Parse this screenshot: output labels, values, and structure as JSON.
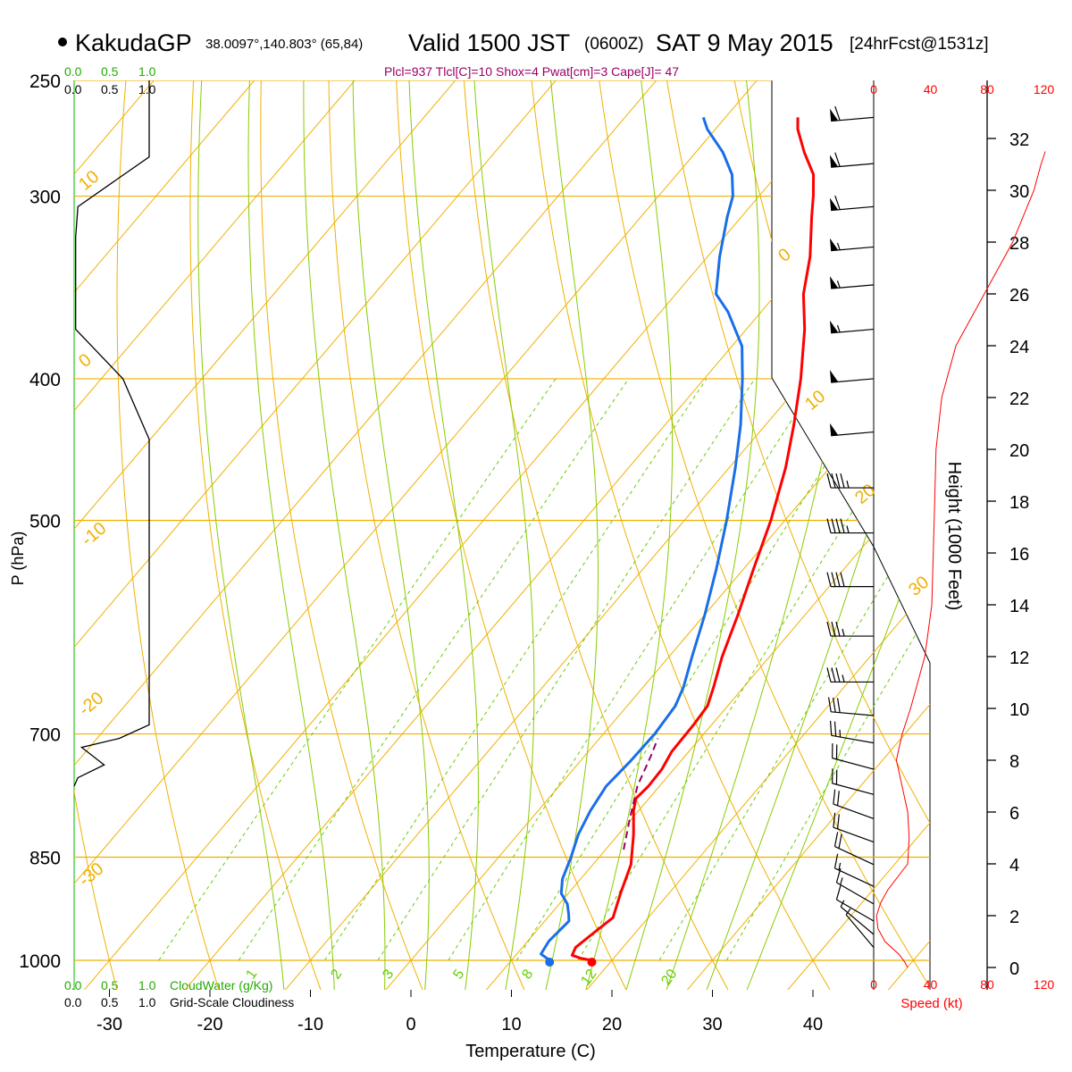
{
  "header": {
    "station_name": "KakudaGP",
    "coords": "38.0097°,140.803° (65,84)",
    "valid_main": "Valid 1500 JST",
    "valid_utc": "(0600Z)",
    "valid_date": "SAT 9 May 2015",
    "forecast": "[24hrFcst@1531z]",
    "params": "Plcl=937 Tlcl[C]=10 Shox=4 Pwat[cm]=3 Cape[J]= 47"
  },
  "labels": {
    "x_axis": "Temperature (C)",
    "y_axis": "P (hPa)",
    "height_axis": "Height (1000 Feet)",
    "speed_axis": "Speed (kt)",
    "cloud_water": "CloudWater (g/Kg)",
    "grid_cloudiness": "Grid-Scale Cloudiness",
    "cloud_scale": [
      "0.0",
      "0.5",
      "1.0"
    ],
    "cloud_scale_bottom": [
      "0.0",
      "0.5",
      "1.0"
    ]
  },
  "colors": {
    "temperature": "#ff0000",
    "dewpoint": "#1a6ee8",
    "isotherm": "#f0b000",
    "dry_adiabat": "#f0b000",
    "moist_adiabat": "#88cc00",
    "mixing_ratio": "#66cc00",
    "parcel": "#990066",
    "header_params": "#990066",
    "cloud_label": "#22aa00",
    "wind_speed": "#ff0000"
  },
  "chart_data": {
    "type": "line",
    "title": "KakudaGP Valid 1500 JST (0600Z) SAT 9 May 2015",
    "xlabel": "Temperature (C)",
    "ylabel": "P (hPa)",
    "x_ticks": [
      "-30",
      "-20",
      "-10",
      "0",
      "10",
      "20",
      "30",
      "40"
    ],
    "p_ticks": [
      "250",
      "300",
      "400",
      "500",
      "700",
      "850",
      "1000"
    ],
    "height_ticks": [
      "0",
      "2",
      "4",
      "6",
      "8",
      "10",
      "12",
      "14",
      "16",
      "18",
      "20",
      "22",
      "24",
      "26",
      "28",
      "30",
      "32"
    ],
    "speed_ticks": [
      "0",
      "40",
      "80",
      "120"
    ],
    "dry_adiabat_labels": [
      "10",
      "0",
      "-10",
      "-20",
      "-30",
      "0",
      "10",
      "20",
      "30"
    ],
    "mixing_ratio_labels": [
      "1",
      "2",
      "3",
      "5",
      "8",
      "12",
      "20"
    ],
    "ylim": [
      1000,
      250
    ],
    "xlim_at_1000hPa": [
      -34,
      52
    ],
    "series": [
      {
        "name": "Temperature",
        "points": [
          [
            1000,
            18.0
          ],
          [
            997,
            16.8
          ],
          [
            992,
            15.6
          ],
          [
            980,
            15.3
          ],
          [
            960,
            15.8
          ],
          [
            935,
            16.5
          ],
          [
            900,
            15.2
          ],
          [
            860,
            13.8
          ],
          [
            820,
            11.5
          ],
          [
            790,
            9.5
          ],
          [
            775,
            8.7
          ],
          [
            760,
            8.9
          ],
          [
            740,
            8.8
          ],
          [
            720,
            8.3
          ],
          [
            690,
            8.2
          ],
          [
            670,
            8.0
          ],
          [
            650,
            7.0
          ],
          [
            620,
            5.3
          ],
          [
            580,
            3.3
          ],
          [
            540,
            1.0
          ],
          [
            500,
            -1.4
          ],
          [
            460,
            -4.4
          ],
          [
            430,
            -7.2
          ],
          [
            400,
            -10.4
          ],
          [
            370,
            -14.2
          ],
          [
            350,
            -17.3
          ],
          [
            330,
            -19.8
          ],
          [
            310,
            -23.0
          ],
          [
            300,
            -24.6
          ],
          [
            290,
            -26.4
          ],
          [
            280,
            -29.2
          ],
          [
            270,
            -31.8
          ],
          [
            265,
            -32.8
          ]
        ]
      },
      {
        "name": "Dewpoint",
        "points": [
          [
            1000,
            13.8
          ],
          [
            990,
            12.4
          ],
          [
            970,
            12.1
          ],
          [
            940,
            12.4
          ],
          [
            930,
            11.8
          ],
          [
            915,
            10.8
          ],
          [
            900,
            9.3
          ],
          [
            880,
            8.2
          ],
          [
            850,
            7.2
          ],
          [
            820,
            6.0
          ],
          [
            790,
            5.2
          ],
          [
            760,
            4.7
          ],
          [
            730,
            5.0
          ],
          [
            700,
            5.1
          ],
          [
            670,
            4.8
          ],
          [
            650,
            4.0
          ],
          [
            620,
            2.3
          ],
          [
            580,
            0.0
          ],
          [
            540,
            -2.7
          ],
          [
            500,
            -5.8
          ],
          [
            460,
            -9.4
          ],
          [
            430,
            -12.5
          ],
          [
            400,
            -16.2
          ],
          [
            380,
            -19.0
          ],
          [
            360,
            -23.3
          ],
          [
            350,
            -26.0
          ],
          [
            330,
            -28.8
          ],
          [
            310,
            -31.4
          ],
          [
            300,
            -32.6
          ],
          [
            290,
            -34.5
          ],
          [
            280,
            -37.3
          ],
          [
            270,
            -40.8
          ],
          [
            265,
            -42.2
          ]
        ]
      },
      {
        "name": "Parcel",
        "points": [
          [
            840,
            11.8
          ],
          [
            800,
            9.8
          ],
          [
            760,
            7.8
          ],
          [
            725,
            6.6
          ],
          [
            705,
            5.8
          ]
        ]
      }
    ],
    "surface": {
      "temperature": 18.0,
      "dewpoint": 13.8,
      "pressure": 1000
    },
    "wind_speed_kt": [
      [
        0.0,
        24
      ],
      [
        0.2,
        22
      ],
      [
        0.5,
        18
      ],
      [
        1.0,
        8
      ],
      [
        1.5,
        3
      ],
      [
        2.0,
        2
      ],
      [
        2.5,
        5
      ],
      [
        3.0,
        10
      ],
      [
        4.0,
        24
      ],
      [
        5.0,
        25
      ],
      [
        6.0,
        24
      ],
      [
        7.0,
        20
      ],
      [
        8.0,
        16
      ],
      [
        9.0,
        20
      ],
      [
        10.0,
        26
      ],
      [
        12.0,
        36
      ],
      [
        14.0,
        41
      ],
      [
        16.0,
        42
      ],
      [
        18.0,
        43
      ],
      [
        20.0,
        44
      ],
      [
        22.0,
        48
      ],
      [
        24.0,
        58
      ],
      [
        26.0,
        78
      ],
      [
        28.0,
        98
      ],
      [
        30.0,
        113
      ],
      [
        31.0,
        118
      ],
      [
        31.5,
        121
      ]
    ],
    "cloud_fraction": [
      [
        250,
        1.0
      ],
      [
        282,
        1.0
      ],
      [
        305,
        0.05
      ],
      [
        320,
        0.02
      ],
      [
        370,
        0.02
      ],
      [
        400,
        0.65
      ],
      [
        440,
        1.0
      ],
      [
        690,
        1.0
      ],
      [
        705,
        0.6
      ],
      [
        715,
        0.1
      ],
      [
        735,
        0.4
      ],
      [
        750,
        0.05
      ],
      [
        760,
        0.0
      ]
    ],
    "wind_barbs": [
      {
        "p": 265,
        "dir": 265,
        "spd": 60
      },
      {
        "p": 285,
        "dir": 265,
        "spd": 60
      },
      {
        "p": 305,
        "dir": 265,
        "spd": 60
      },
      {
        "p": 325,
        "dir": 265,
        "spd": 55
      },
      {
        "p": 345,
        "dir": 265,
        "spd": 55
      },
      {
        "p": 370,
        "dir": 265,
        "spd": 55
      },
      {
        "p": 400,
        "dir": 265,
        "spd": 50
      },
      {
        "p": 435,
        "dir": 265,
        "spd": 50
      },
      {
        "p": 475,
        "dir": 270,
        "spd": 45
      },
      {
        "p": 510,
        "dir": 270,
        "spd": 45
      },
      {
        "p": 555,
        "dir": 270,
        "spd": 40
      },
      {
        "p": 600,
        "dir": 270,
        "spd": 35
      },
      {
        "p": 645,
        "dir": 270,
        "spd": 35
      },
      {
        "p": 680,
        "dir": 275,
        "spd": 30
      },
      {
        "p": 710,
        "dir": 280,
        "spd": 25
      },
      {
        "p": 740,
        "dir": 285,
        "spd": 20
      },
      {
        "p": 770,
        "dir": 285,
        "spd": 20
      },
      {
        "p": 800,
        "dir": 290,
        "spd": 20
      },
      {
        "p": 830,
        "dir": 290,
        "spd": 20
      },
      {
        "p": 860,
        "dir": 295,
        "spd": 20
      },
      {
        "p": 890,
        "dir": 295,
        "spd": 15
      },
      {
        "p": 915,
        "dir": 300,
        "spd": 15
      },
      {
        "p": 940,
        "dir": 300,
        "spd": 10
      },
      {
        "p": 960,
        "dir": 310,
        "spd": 5
      },
      {
        "p": 980,
        "dir": 320,
        "spd": 5
      }
    ]
  }
}
